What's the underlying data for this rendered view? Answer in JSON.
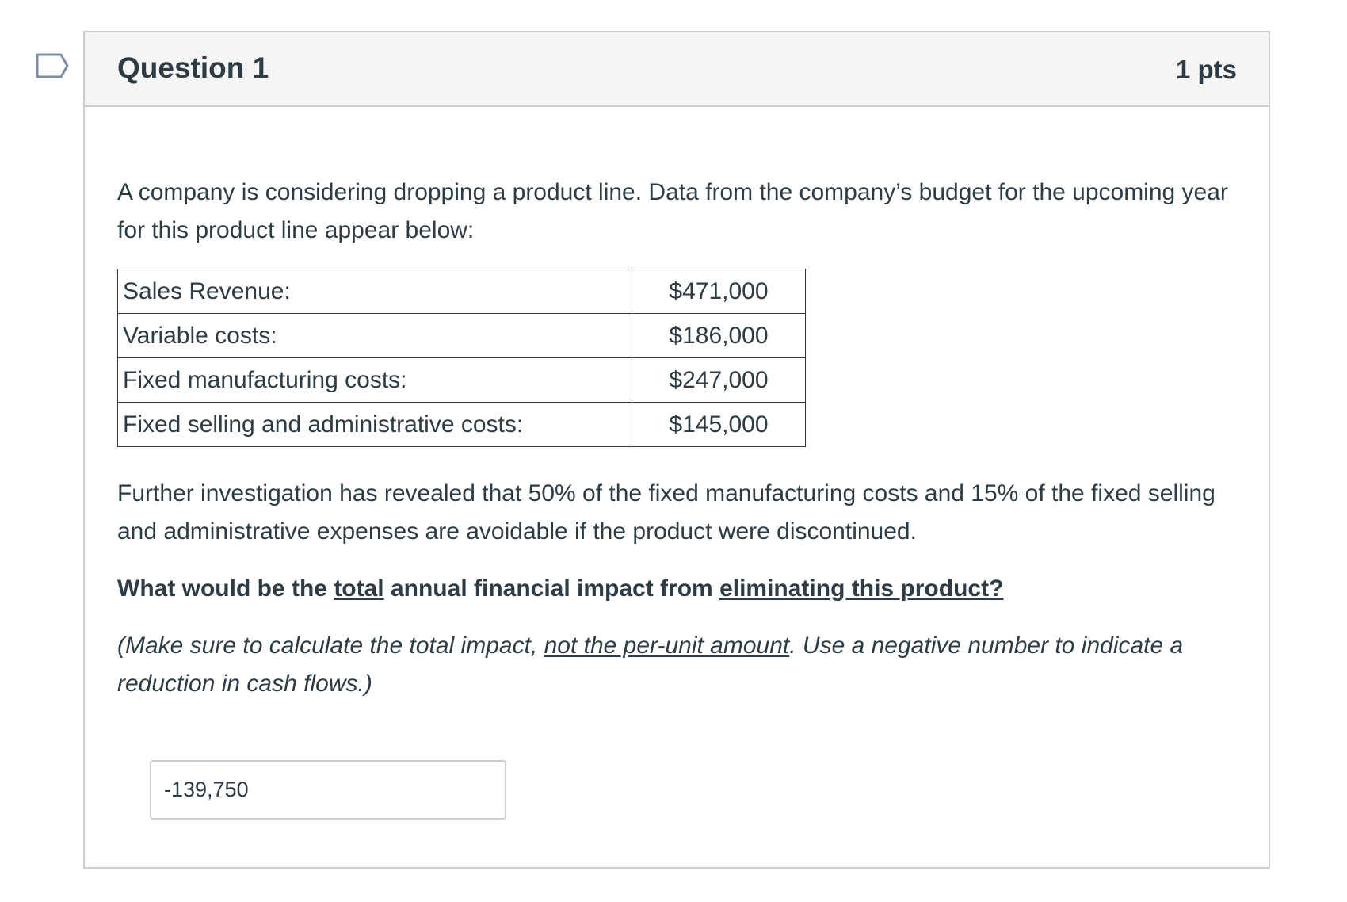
{
  "question": {
    "title": "Question 1",
    "points": "1 pts",
    "flag_icon": "bookmark-flag-outline",
    "intro": "A company is considering dropping a product line. Data from the company’s budget for the upcoming year for this product line appear below:",
    "table": [
      {
        "label": "Sales Revenue:",
        "value": "$471,000"
      },
      {
        "label": "Variable costs:",
        "value": "$186,000"
      },
      {
        "label": "Fixed manufacturing costs:",
        "value": "$247,000"
      },
      {
        "label": "Fixed selling and administrative costs:",
        "value": "$145,000"
      }
    ],
    "further": "Further investigation has revealed that 50% of the fixed manufacturing costs and 15% of the fixed selling and administrative expenses are avoidable if the product were discontinued.",
    "prompt": {
      "p1": "What would be the ",
      "u1": "total",
      "p2": " annual financial impact from ",
      "u2": "eliminating this product?"
    },
    "note": {
      "p1": "(Make sure to calculate the total impact, ",
      "u1": "not the per-unit amount",
      "p2": ". Use a negative number to indicate a reduction in cash flows.)"
    },
    "answer_value": "-139,750"
  }
}
